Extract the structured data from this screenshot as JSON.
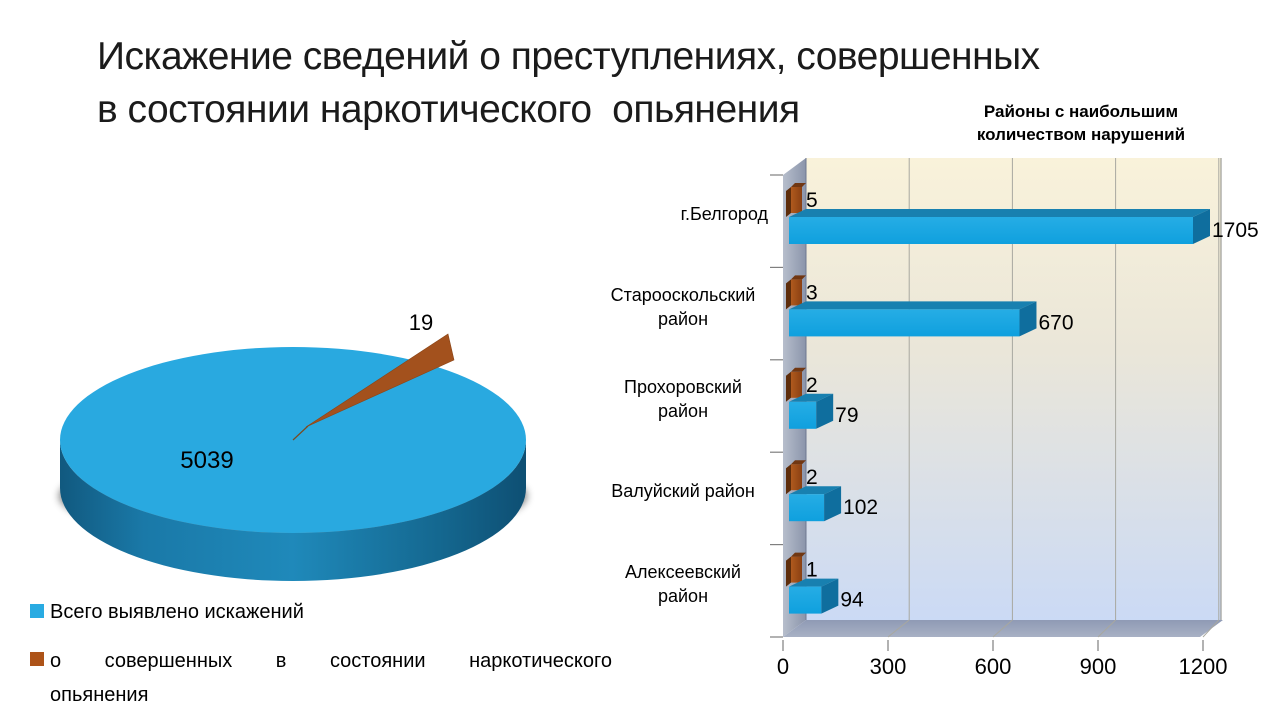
{
  "slide": {
    "title_line1": "Искажение сведений о преступлениях, совершенных",
    "title_line2": "в состоянии наркотического  опьянения"
  },
  "colors": {
    "pie_blue_top": "#29A9E0",
    "bar_blue_front": "#18A6E0",
    "bar_blue_top": "#1880B0",
    "bar_blue_end": "#0F6E9E",
    "brown": "#A3511D",
    "brown_dark": "#5E2D0B",
    "legend_blue": "#29ABE2",
    "legend_brown": "#AD5318",
    "wall_gray": "#9BA5BA",
    "plot_top": "#F9F2DA",
    "plot_bottom": "#CBDAF5",
    "gridline": "#A8A8A0",
    "tick": "#7F7F7F"
  },
  "chart_data": [
    {
      "type": "pie",
      "style": "3d-exploded",
      "title": "",
      "slices": [
        {
          "label": "Всего выявлено искажений",
          "value": 5039,
          "data_label": "5039",
          "color": "#29A9E0",
          "exploded": false
        },
        {
          "label": "о совершенных в состоянии наркотического опьянения",
          "value": 19,
          "data_label": "19",
          "color": "#A3511D",
          "exploded": true
        }
      ],
      "legend_position": "bottom-left"
    },
    {
      "type": "bar",
      "style": "3d",
      "orientation": "horizontal",
      "title": "Районы с наибольшим количеством нарушений",
      "categories": [
        "г.Белгород",
        "Старооскольский район",
        "Прохоровский район",
        "Валуйский район",
        "Алексеевский район"
      ],
      "series": [
        {
          "name": "о совершенных в состоянии наркотического опьянения",
          "color": "#A3511D",
          "values": [
            5,
            3,
            2,
            2,
            1
          ]
        },
        {
          "name": "Всего выявлено искажений",
          "color": "#18A6E0",
          "values": [
            1705,
            670,
            79,
            102,
            94
          ]
        }
      ],
      "xlim": [
        0,
        1200
      ],
      "x_ticks": [
        0,
        300,
        600,
        900,
        1200
      ],
      "grid": true,
      "legend_position": "none"
    }
  ],
  "legend": {
    "items": [
      {
        "label": "Всего выявлено искажений",
        "color": "#29ABE2"
      },
      {
        "line1": "о совершенных в состоянии наркотического",
        "line2": "опьянения",
        "color": "#AD5318"
      }
    ]
  }
}
